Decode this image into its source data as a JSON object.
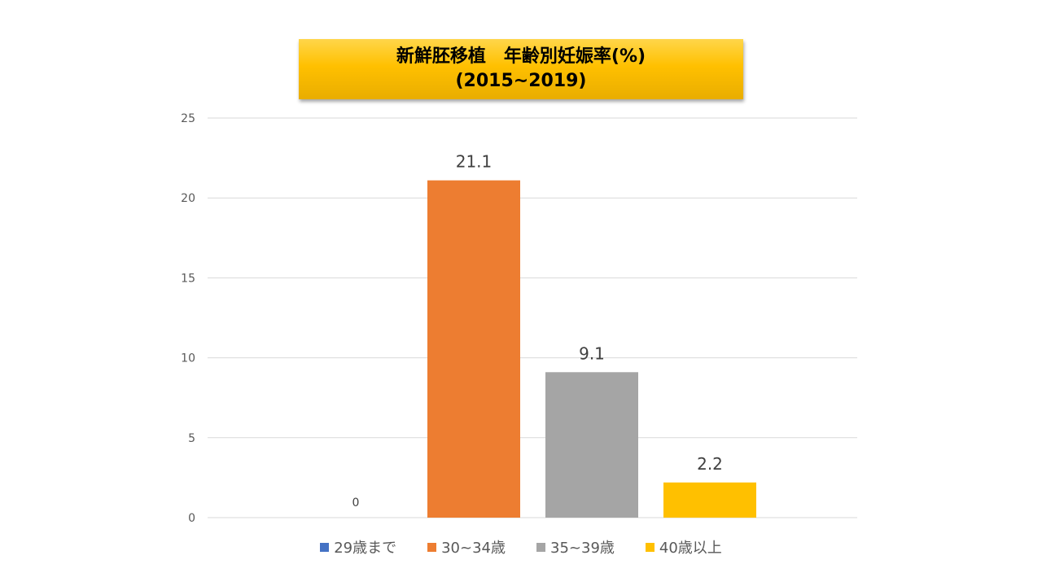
{
  "title": {
    "line1": "新鮮胚移植　年齢別妊娠率(%)",
    "line2": "(2015~2019)"
  },
  "chart_data": {
    "type": "bar",
    "categories": [
      "29歳まで",
      "30~34歳",
      "35~39歳",
      "40歳以上"
    ],
    "values": [
      0,
      21.1,
      9.1,
      2.2
    ],
    "data_labels": [
      "0",
      "21.1",
      "9.1",
      "2.2"
    ],
    "colors": [
      "#4472c4",
      "#ed7d31",
      "#a5a5a5",
      "#ffc000"
    ],
    "ylim": [
      0,
      25
    ],
    "yticks": [
      0,
      5,
      10,
      15,
      20,
      25
    ],
    "grid": true,
    "legend": "bottom",
    "xlabel": "",
    "ylabel": ""
  }
}
